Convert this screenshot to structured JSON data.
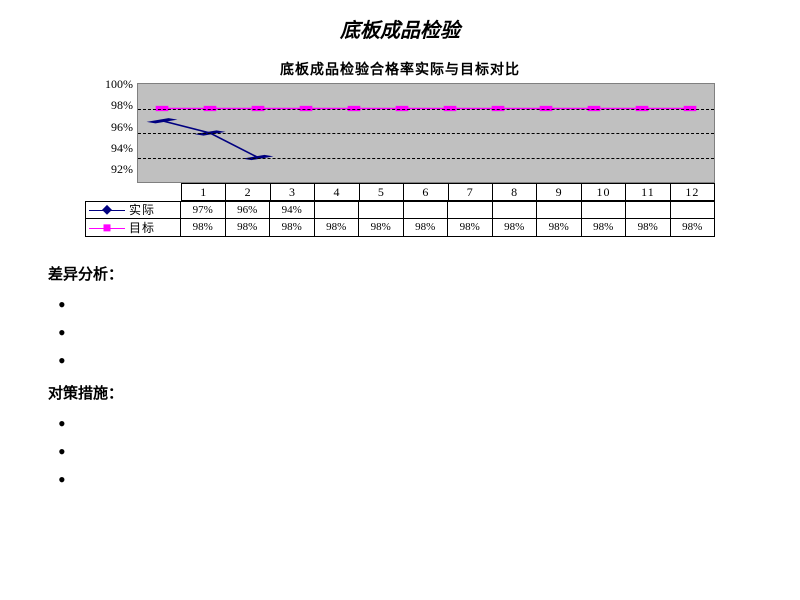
{
  "title": "底板成品检验",
  "chart": {
    "title": "底板成品检验合格率实际与目标对比",
    "type": "line",
    "background_color": "#c0c0c0",
    "grid_color": "#000000",
    "y_axis": {
      "min": 92,
      "max": 100,
      "step": 2,
      "unit": "%"
    },
    "categories": [
      "1",
      "2",
      "3",
      "4",
      "5",
      "6",
      "7",
      "8",
      "9",
      "10",
      "11",
      "12"
    ],
    "series": [
      {
        "name": "实际",
        "color": "#000080",
        "marker": "diamond",
        "values": [
          97,
          96,
          94,
          null,
          null,
          null,
          null,
          null,
          null,
          null,
          null,
          null
        ]
      },
      {
        "name": "目标",
        "color": "#ff00ff",
        "marker": "square",
        "values": [
          98,
          98,
          98,
          98,
          98,
          98,
          98,
          98,
          98,
          98,
          98,
          98
        ]
      }
    ]
  },
  "sections": [
    {
      "heading": "差异分析：",
      "bullets": [
        "",
        "",
        ""
      ]
    },
    {
      "heading": "对策措施：",
      "bullets": [
        "",
        "",
        ""
      ]
    }
  ]
}
